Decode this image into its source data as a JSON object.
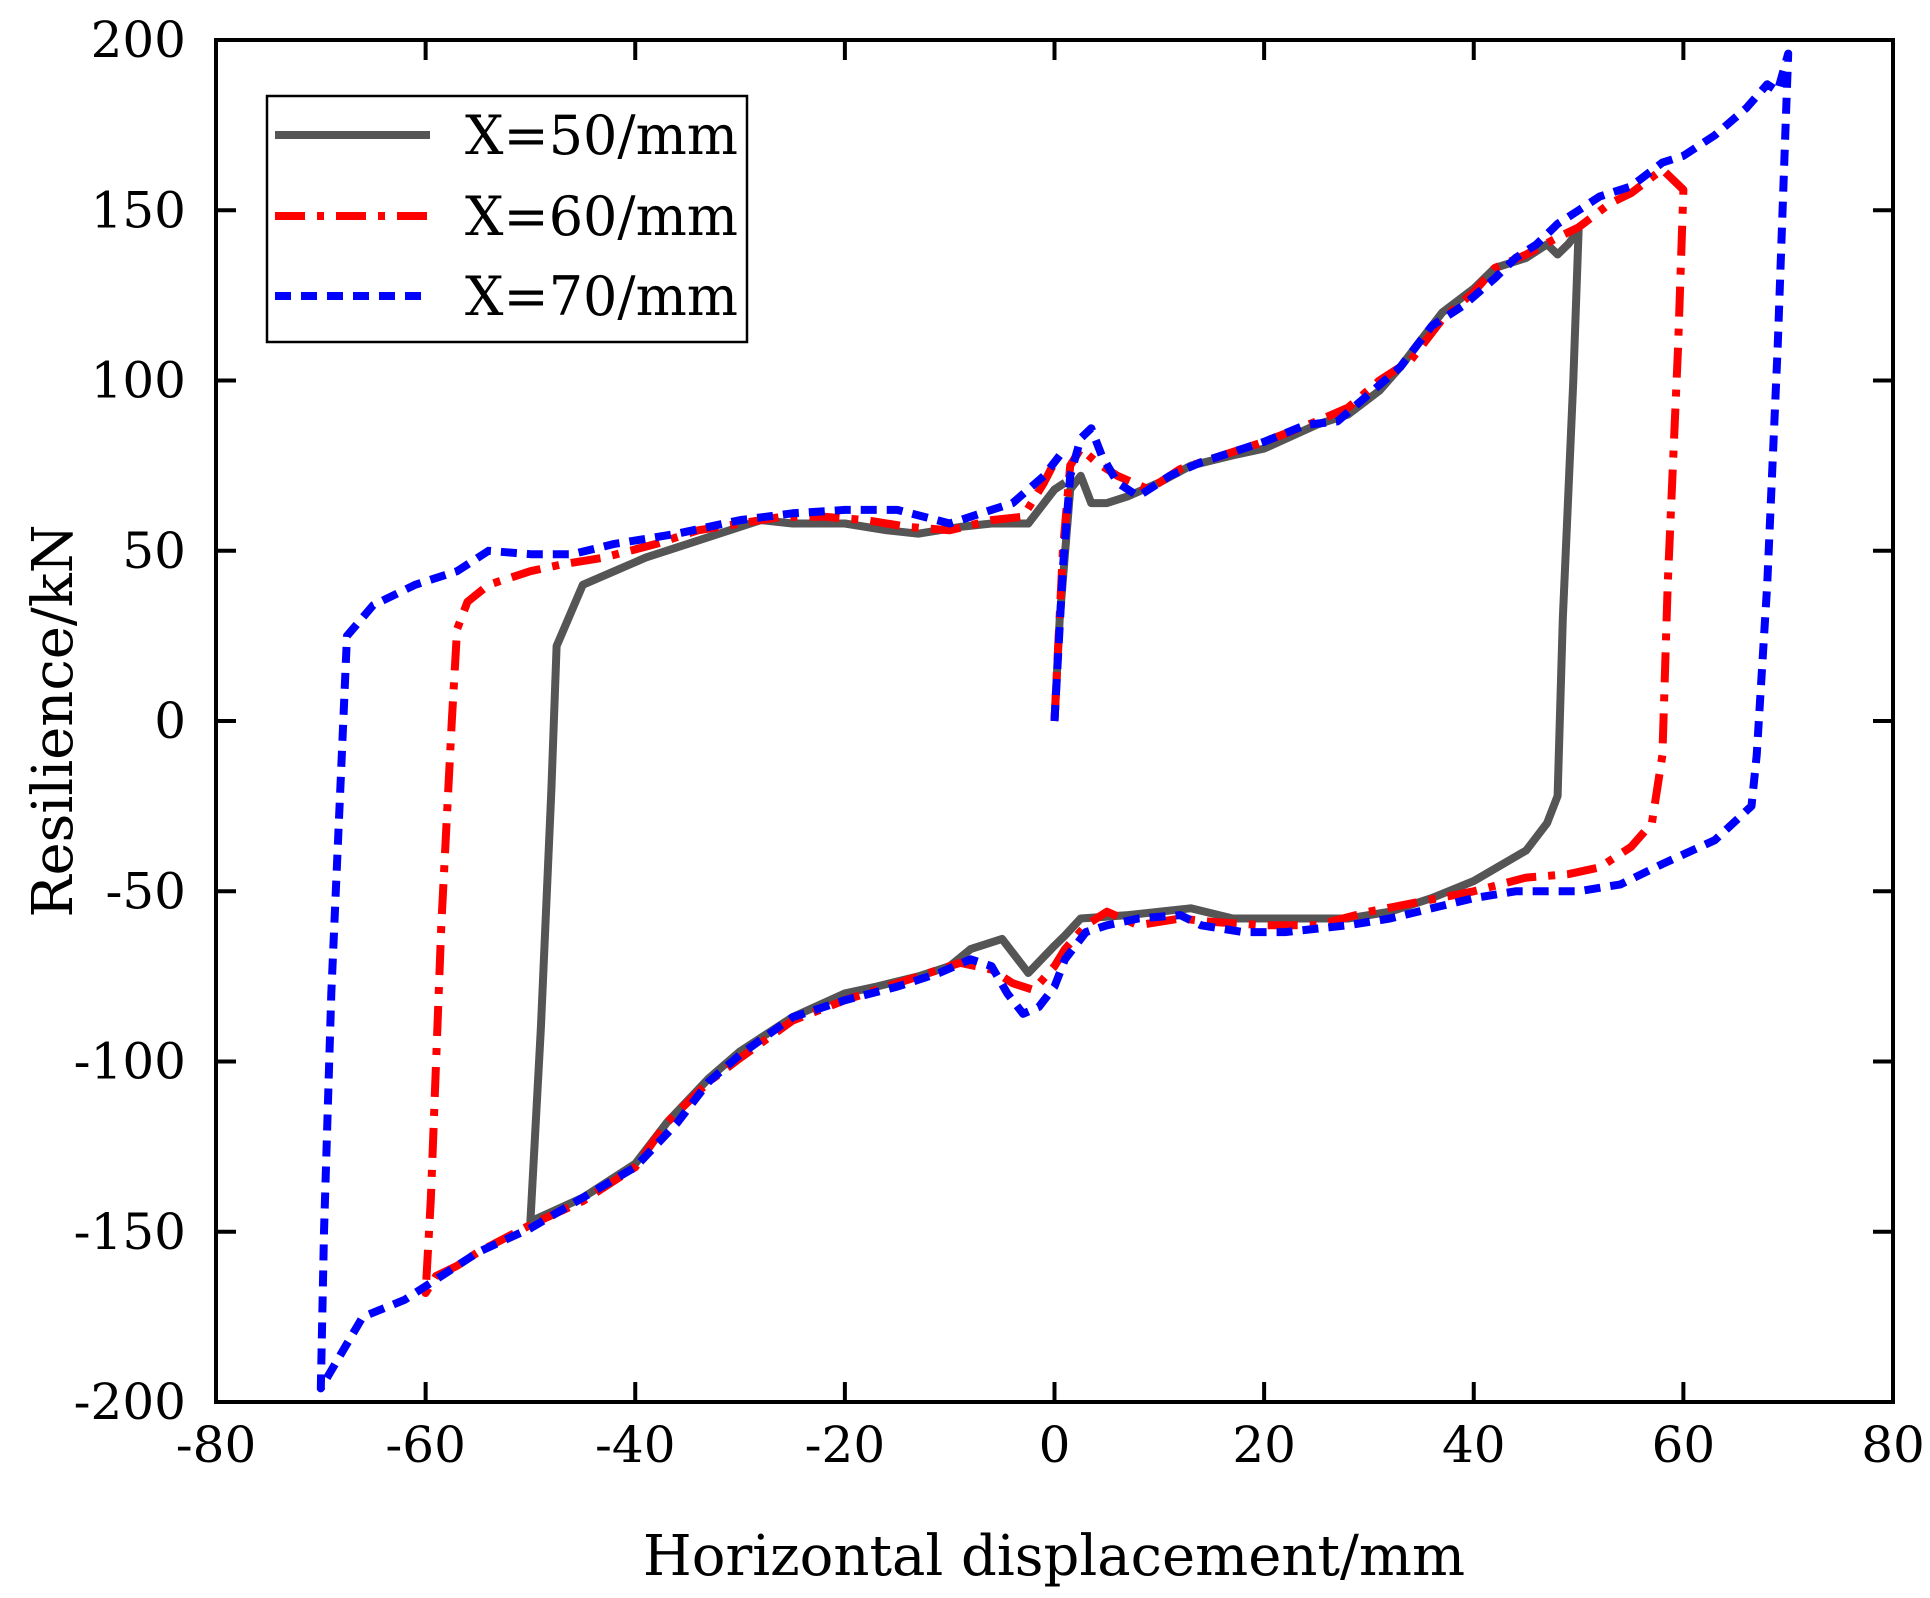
{
  "chart_data": {
    "type": "line",
    "title": "",
    "xlabel": "Horizontal displacement/mm",
    "ylabel": "Resilience/kN",
    "xlim": [
      -80,
      80
    ],
    "ylim": [
      -200,
      200
    ],
    "xticks": [
      -80,
      -60,
      -40,
      -20,
      0,
      20,
      40,
      60,
      80
    ],
    "yticks": [
      -200,
      -150,
      -100,
      -50,
      0,
      50,
      100,
      150,
      200
    ],
    "xtick_labels": [
      "-80",
      "-60",
      "-40",
      "-20",
      "0",
      "20",
      "40",
      "60",
      "80"
    ],
    "ytick_labels": [
      "-200",
      "-150",
      "-100",
      "-50",
      "0",
      "50",
      "100",
      "150",
      "200"
    ],
    "grid": false,
    "legend_position": "top-left",
    "series": [
      {
        "name": "X=50/mm",
        "color": "#555555",
        "style": "solid",
        "points": [
          [
            0,
            0
          ],
          [
            0.5,
            30
          ],
          [
            1.5,
            68
          ],
          [
            2.5,
            72
          ],
          [
            3.5,
            64
          ],
          [
            5,
            64
          ],
          [
            7,
            66
          ],
          [
            10,
            70
          ],
          [
            13,
            75
          ],
          [
            17,
            78
          ],
          [
            20,
            80
          ],
          [
            25,
            87
          ],
          [
            28,
            90
          ],
          [
            31,
            97
          ],
          [
            33,
            104
          ],
          [
            35,
            112
          ],
          [
            37,
            120
          ],
          [
            40,
            127
          ],
          [
            42,
            133
          ],
          [
            45,
            136
          ],
          [
            47,
            140
          ],
          [
            48,
            137
          ],
          [
            49,
            140
          ],
          [
            50,
            144
          ],
          [
            49.5,
            100
          ],
          [
            48.5,
            30
          ],
          [
            48,
            -22
          ],
          [
            47,
            -30
          ],
          [
            45,
            -38
          ],
          [
            40,
            -47
          ],
          [
            36,
            -52
          ],
          [
            32,
            -56
          ],
          [
            28,
            -58
          ],
          [
            25,
            -58
          ],
          [
            20,
            -58
          ],
          [
            17,
            -58
          ],
          [
            13,
            -55
          ],
          [
            10,
            -56
          ],
          [
            7,
            -57
          ],
          [
            2.5,
            -58
          ],
          [
            1,
            -63
          ],
          [
            0,
            -66
          ],
          [
            -2.5,
            -74
          ],
          [
            -5,
            -64
          ],
          [
            -8,
            -67
          ],
          [
            -10,
            -72
          ],
          [
            -13,
            -75
          ],
          [
            -17,
            -78
          ],
          [
            -20,
            -80
          ],
          [
            -25,
            -87
          ],
          [
            -30,
            -97
          ],
          [
            -33,
            -105
          ],
          [
            -37,
            -118
          ],
          [
            -40,
            -130
          ],
          [
            -45,
            -140
          ],
          [
            -50,
            -147
          ],
          [
            -49,
            -90
          ],
          [
            -48,
            -20
          ],
          [
            -47.5,
            22
          ],
          [
            -45,
            40
          ],
          [
            -42,
            44
          ],
          [
            -39,
            48
          ],
          [
            -35,
            52
          ],
          [
            -32,
            55
          ],
          [
            -28,
            59
          ],
          [
            -25,
            58
          ],
          [
            -20,
            58
          ],
          [
            -16,
            56
          ],
          [
            -13,
            55
          ],
          [
            -9,
            57
          ],
          [
            -6,
            58
          ],
          [
            -2.5,
            58
          ],
          [
            0,
            68
          ],
          [
            1,
            70
          ]
        ]
      },
      {
        "name": "X=60/mm",
        "color": "#ff0000",
        "style": "dashdot",
        "points": [
          [
            0,
            0
          ],
          [
            0.8,
            50
          ],
          [
            1.5,
            75
          ],
          [
            2.5,
            80
          ],
          [
            4,
            76
          ],
          [
            6,
            72
          ],
          [
            9,
            68
          ],
          [
            12,
            74
          ],
          [
            16,
            78
          ],
          [
            20,
            82
          ],
          [
            25,
            88
          ],
          [
            28,
            92
          ],
          [
            31,
            100
          ],
          [
            34,
            106
          ],
          [
            37,
            118
          ],
          [
            40,
            126
          ],
          [
            42,
            133
          ],
          [
            45,
            137
          ],
          [
            48,
            142
          ],
          [
            50,
            145
          ],
          [
            53,
            152
          ],
          [
            55,
            155
          ],
          [
            58,
            162
          ],
          [
            60,
            156
          ],
          [
            59.5,
            110
          ],
          [
            58.5,
            40
          ],
          [
            58,
            -10
          ],
          [
            57,
            -30
          ],
          [
            55,
            -37
          ],
          [
            52,
            -43
          ],
          [
            49,
            -45
          ],
          [
            45,
            -46
          ],
          [
            40,
            -50
          ],
          [
            35,
            -53
          ],
          [
            30,
            -56
          ],
          [
            25,
            -60
          ],
          [
            20,
            -60
          ],
          [
            15,
            -59
          ],
          [
            12,
            -58
          ],
          [
            8,
            -60
          ],
          [
            5,
            -56
          ],
          [
            3,
            -60
          ],
          [
            1,
            -67
          ],
          [
            0,
            -72
          ],
          [
            -2,
            -79
          ],
          [
            -4,
            -77
          ],
          [
            -6,
            -73
          ],
          [
            -9,
            -71
          ],
          [
            -12,
            -74
          ],
          [
            -16,
            -78
          ],
          [
            -20,
            -82
          ],
          [
            -25,
            -88
          ],
          [
            -30,
            -99
          ],
          [
            -33,
            -106
          ],
          [
            -37,
            -118
          ],
          [
            -40,
            -131
          ],
          [
            -45,
            -141
          ],
          [
            -50,
            -148
          ],
          [
            -55,
            -156
          ],
          [
            -57,
            -160
          ],
          [
            -59,
            -163
          ],
          [
            -60,
            -168
          ],
          [
            -59.5,
            -140
          ],
          [
            -58.5,
            -60
          ],
          [
            -57.5,
            0
          ],
          [
            -57,
            27
          ],
          [
            -56,
            35
          ],
          [
            -54,
            40
          ],
          [
            -50,
            44
          ],
          [
            -47,
            46
          ],
          [
            -43,
            48
          ],
          [
            -38,
            52
          ],
          [
            -34,
            56
          ],
          [
            -30,
            58
          ],
          [
            -26,
            60
          ],
          [
            -22,
            60
          ],
          [
            -18,
            59
          ],
          [
            -14,
            57
          ],
          [
            -10,
            56
          ],
          [
            -6,
            59
          ],
          [
            -3,
            60
          ],
          [
            -1,
            70
          ],
          [
            0,
            76
          ]
        ]
      },
      {
        "name": "X=70/mm",
        "color": "#0000ff",
        "style": "dashed",
        "points": [
          [
            0,
            0
          ],
          [
            0.8,
            45
          ],
          [
            1.5,
            72
          ],
          [
            2.5,
            83
          ],
          [
            3.5,
            86
          ],
          [
            4.5,
            78
          ],
          [
            6,
            70
          ],
          [
            8,
            66
          ],
          [
            11,
            72
          ],
          [
            14,
            76
          ],
          [
            17,
            79
          ],
          [
            20,
            82
          ],
          [
            24,
            87
          ],
          [
            27,
            88
          ],
          [
            30,
            96
          ],
          [
            33,
            104
          ],
          [
            36,
            116
          ],
          [
            39,
            122
          ],
          [
            42,
            130
          ],
          [
            44,
            136
          ],
          [
            46,
            140
          ],
          [
            48,
            146
          ],
          [
            50,
            150
          ],
          [
            52,
            154
          ],
          [
            55,
            157
          ],
          [
            58,
            164
          ],
          [
            60,
            166
          ],
          [
            63,
            172
          ],
          [
            66,
            180
          ],
          [
            68,
            187
          ],
          [
            69,
            185
          ],
          [
            70,
            196
          ],
          [
            69.7,
            170
          ],
          [
            69,
            110
          ],
          [
            68,
            40
          ],
          [
            67,
            -10
          ],
          [
            66.5,
            -25
          ],
          [
            63,
            -35
          ],
          [
            58,
            -42
          ],
          [
            54,
            -48
          ],
          [
            50,
            -50
          ],
          [
            44,
            -50
          ],
          [
            40,
            -52
          ],
          [
            36,
            -55
          ],
          [
            32,
            -58
          ],
          [
            28,
            -60
          ],
          [
            22,
            -62
          ],
          [
            18,
            -62
          ],
          [
            14,
            -60
          ],
          [
            12,
            -57
          ],
          [
            8,
            -58
          ],
          [
            5,
            -60
          ],
          [
            3,
            -62
          ],
          [
            1,
            -70
          ],
          [
            0,
            -78
          ],
          [
            -1.5,
            -84
          ],
          [
            -3,
            -86
          ],
          [
            -4.5,
            -80
          ],
          [
            -6,
            -72
          ],
          [
            -8,
            -70
          ],
          [
            -11,
            -74
          ],
          [
            -15,
            -78
          ],
          [
            -20,
            -82
          ],
          [
            -25,
            -87
          ],
          [
            -30,
            -98
          ],
          [
            -33,
            -106
          ],
          [
            -36,
            -118
          ],
          [
            -40,
            -131
          ],
          [
            -45,
            -140
          ],
          [
            -50,
            -149
          ],
          [
            -55,
            -156
          ],
          [
            -58,
            -162
          ],
          [
            -62,
            -170
          ],
          [
            -66,
            -175
          ],
          [
            -70,
            -196
          ],
          [
            -69.7,
            -150
          ],
          [
            -69,
            -80
          ],
          [
            -68,
            -10
          ],
          [
            -67.5,
            25
          ],
          [
            -65,
            34
          ],
          [
            -61,
            40
          ],
          [
            -57,
            44
          ],
          [
            -54,
            50
          ],
          [
            -50,
            49
          ],
          [
            -46,
            49
          ],
          [
            -42,
            52
          ],
          [
            -36,
            55
          ],
          [
            -30,
            59
          ],
          [
            -25,
            61
          ],
          [
            -20,
            62
          ],
          [
            -15,
            62
          ],
          [
            -10,
            58
          ],
          [
            -7,
            61
          ],
          [
            -4,
            64
          ],
          [
            -1,
            72
          ],
          [
            1,
            80
          ]
        ]
      }
    ]
  }
}
